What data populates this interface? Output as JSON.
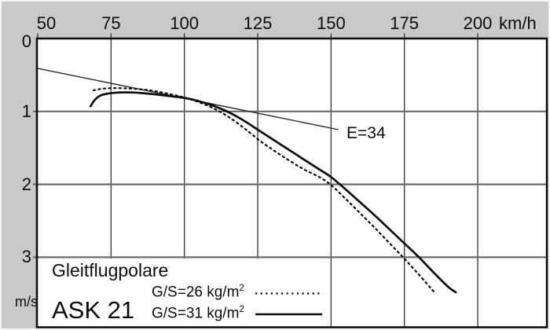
{
  "chart_data": {
    "type": "line",
    "title": "Gleitflugpolare",
    "aircraft": "ASK 21",
    "x_axis": {
      "unit": "km/h",
      "ticks": [
        50,
        75,
        100,
        125,
        150,
        175,
        200
      ],
      "range": [
        50,
        224
      ]
    },
    "y_axis": {
      "unit": "m/s",
      "ticks": [
        0,
        1,
        2,
        3
      ],
      "range": [
        0,
        3.96
      ],
      "direction": "down"
    },
    "grid": true,
    "legend_position": "bottom-left-inside",
    "series": [
      {
        "name": "G/S=26 kg/m²",
        "line": "dotted",
        "points": [
          [
            69,
            0.71
          ],
          [
            72,
            0.69
          ],
          [
            76,
            0.68
          ],
          [
            81,
            0.685
          ],
          [
            86,
            0.7
          ],
          [
            91,
            0.73
          ],
          [
            96,
            0.77
          ],
          [
            101,
            0.82
          ],
          [
            106,
            0.89
          ],
          [
            111,
            0.98
          ],
          [
            116,
            1.1
          ],
          [
            121,
            1.25
          ],
          [
            126,
            1.41
          ],
          [
            131,
            1.55
          ],
          [
            136,
            1.68
          ],
          [
            141,
            1.8
          ],
          [
            146,
            1.9
          ],
          [
            150,
            2.01
          ],
          [
            155,
            2.2
          ],
          [
            160,
            2.4
          ],
          [
            165,
            2.6
          ],
          [
            170,
            2.81
          ],
          [
            175,
            3.02
          ],
          [
            180,
            3.24
          ],
          [
            185,
            3.47
          ]
        ]
      },
      {
        "name": "G/S=31 kg/m²",
        "line": "solid",
        "points": [
          [
            68,
            0.93
          ],
          [
            69.5,
            0.84
          ],
          [
            71.5,
            0.78
          ],
          [
            74,
            0.755
          ],
          [
            78,
            0.74
          ],
          [
            82,
            0.74
          ],
          [
            86,
            0.75
          ],
          [
            90,
            0.765
          ],
          [
            95,
            0.79
          ],
          [
            100,
            0.815
          ],
          [
            105,
            0.86
          ],
          [
            110,
            0.925
          ],
          [
            115,
            1.01
          ],
          [
            120,
            1.12
          ],
          [
            125,
            1.25
          ],
          [
            130,
            1.38
          ],
          [
            135,
            1.51
          ],
          [
            140,
            1.64
          ],
          [
            145,
            1.77
          ],
          [
            150,
            1.9
          ],
          [
            155,
            2.07
          ],
          [
            160,
            2.25
          ],
          [
            165,
            2.43
          ],
          [
            170,
            2.62
          ],
          [
            175,
            2.81
          ],
          [
            180,
            3.0
          ],
          [
            185,
            3.21
          ],
          [
            190,
            3.41
          ],
          [
            192.5,
            3.48
          ]
        ]
      }
    ],
    "tangent": {
      "label": "E=34",
      "glide_ratio": 34,
      "points": [
        [
          50,
          0.41
        ],
        [
          152.5,
          1.25
        ]
      ]
    }
  },
  "labels": {
    "title": "Gleitflugpolare",
    "aircraft": "ASK 21",
    "x_unit": "km/h",
    "y_unit": "m/s",
    "tangent": "E=34",
    "legend": [
      {
        "label": "G/S=26 kg/m",
        "sup": "2"
      },
      {
        "label": "G/S=31 kg/m",
        "sup": "2"
      }
    ]
  }
}
